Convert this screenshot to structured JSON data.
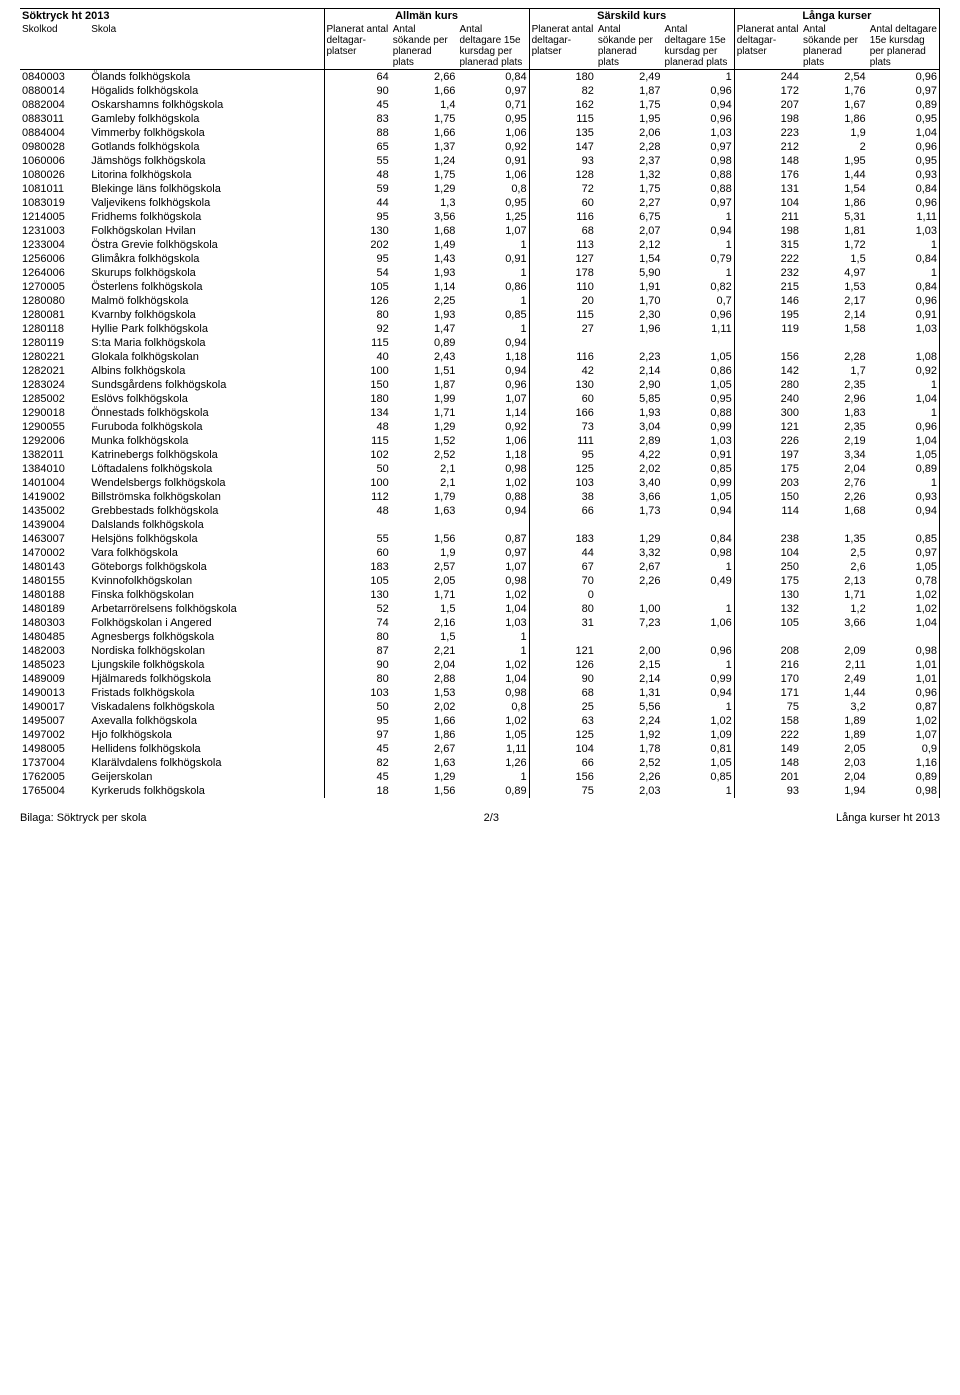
{
  "title": "Söktryck ht 2013",
  "groups": [
    "Allmän kurs",
    "Särskild kurs",
    "Långa kurser"
  ],
  "header": {
    "skolkod": "Skolkod",
    "skola": "Skola",
    "col1": "Planerat antal deltagar-platser",
    "col2": "Antal sökande per planerad plats",
    "col3": "Antal deltagare 15e kursdag per planerad plats"
  },
  "footer": {
    "left": "Bilaga: Söktryck per skola",
    "center": "2/3",
    "right": "Långa kurser ht 2013"
  },
  "rows": [
    [
      "0840003",
      "Ölands folkhögskola",
      "64",
      "2,66",
      "0,84",
      "180",
      "2,49",
      "1",
      "244",
      "2,54",
      "0,96"
    ],
    [
      "0880014",
      "Högalids folkhögskola",
      "90",
      "1,66",
      "0,97",
      "82",
      "1,87",
      "0,96",
      "172",
      "1,76",
      "0,97"
    ],
    [
      "0882004",
      "Oskarshamns folkhögskola",
      "45",
      "1,4",
      "0,71",
      "162",
      "1,75",
      "0,94",
      "207",
      "1,67",
      "0,89"
    ],
    [
      "0883011",
      "Gamleby folkhögskola",
      "83",
      "1,75",
      "0,95",
      "115",
      "1,95",
      "0,96",
      "198",
      "1,86",
      "0,95"
    ],
    [
      "0884004",
      "Vimmerby folkhögskola",
      "88",
      "1,66",
      "1,06",
      "135",
      "2,06",
      "1,03",
      "223",
      "1,9",
      "1,04"
    ],
    [
      "0980028",
      "Gotlands folkhögskola",
      "65",
      "1,37",
      "0,92",
      "147",
      "2,28",
      "0,97",
      "212",
      "2",
      "0,96"
    ],
    [
      "1060006",
      "Jämshögs folkhögskola",
      "55",
      "1,24",
      "0,91",
      "93",
      "2,37",
      "0,98",
      "148",
      "1,95",
      "0,95"
    ],
    [
      "1080026",
      "Litorina folkhögskola",
      "48",
      "1,75",
      "1,06",
      "128",
      "1,32",
      "0,88",
      "176",
      "1,44",
      "0,93"
    ],
    [
      "1081011",
      "Blekinge läns folkhögskola",
      "59",
      "1,29",
      "0,8",
      "72",
      "1,75",
      "0,88",
      "131",
      "1,54",
      "0,84"
    ],
    [
      "1083019",
      "Valjevikens folkhögskola",
      "44",
      "1,3",
      "0,95",
      "60",
      "2,27",
      "0,97",
      "104",
      "1,86",
      "0,96"
    ],
    [
      "1214005",
      "Fridhems folkhögskola",
      "95",
      "3,56",
      "1,25",
      "116",
      "6,75",
      "1",
      "211",
      "5,31",
      "1,11"
    ],
    [
      "1231003",
      "Folkhögskolan Hvilan",
      "130",
      "1,68",
      "1,07",
      "68",
      "2,07",
      "0,94",
      "198",
      "1,81",
      "1,03"
    ],
    [
      "1233004",
      "Östra Grevie folkhögskola",
      "202",
      "1,49",
      "1",
      "113",
      "2,12",
      "1",
      "315",
      "1,72",
      "1"
    ],
    [
      "1256006",
      "Glimåkra folkhögskola",
      "95",
      "1,43",
      "0,91",
      "127",
      "1,54",
      "0,79",
      "222",
      "1,5",
      "0,84"
    ],
    [
      "1264006",
      "Skurups folkhögskola",
      "54",
      "1,93",
      "1",
      "178",
      "5,90",
      "1",
      "232",
      "4,97",
      "1"
    ],
    [
      "1270005",
      "Österlens folkhögskola",
      "105",
      "1,14",
      "0,86",
      "110",
      "1,91",
      "0,82",
      "215",
      "1,53",
      "0,84"
    ],
    [
      "1280080",
      "Malmö folkhögskola",
      "126",
      "2,25",
      "1",
      "20",
      "1,70",
      "0,7",
      "146",
      "2,17",
      "0,96"
    ],
    [
      "1280081",
      "Kvarnby folkhögskola",
      "80",
      "1,93",
      "0,85",
      "115",
      "2,30",
      "0,96",
      "195",
      "2,14",
      "0,91"
    ],
    [
      "1280118",
      "Hyllie Park folkhögskola",
      "92",
      "1,47",
      "1",
      "27",
      "1,96",
      "1,11",
      "119",
      "1,58",
      "1,03"
    ],
    [
      "1280119",
      "S:ta Maria folkhögskola",
      "115",
      "0,89",
      "0,94",
      "",
      "",
      "",
      "",
      "",
      ""
    ],
    [
      "1280221",
      "Glokala folkhögskolan",
      "40",
      "2,43",
      "1,18",
      "116",
      "2,23",
      "1,05",
      "156",
      "2,28",
      "1,08"
    ],
    [
      "1282021",
      "Albins folkhögskola",
      "100",
      "1,51",
      "0,94",
      "42",
      "2,14",
      "0,86",
      "142",
      "1,7",
      "0,92"
    ],
    [
      "1283024",
      "Sundsgårdens folkhögskola",
      "150",
      "1,87",
      "0,96",
      "130",
      "2,90",
      "1,05",
      "280",
      "2,35",
      "1"
    ],
    [
      "1285002",
      "Eslövs folkhögskola",
      "180",
      "1,99",
      "1,07",
      "60",
      "5,85",
      "0,95",
      "240",
      "2,96",
      "1,04"
    ],
    [
      "1290018",
      "Önnestads folkhögskola",
      "134",
      "1,71",
      "1,14",
      "166",
      "1,93",
      "0,88",
      "300",
      "1,83",
      "1"
    ],
    [
      "1290055",
      "Furuboda folkhögskola",
      "48",
      "1,29",
      "0,92",
      "73",
      "3,04",
      "0,99",
      "121",
      "2,35",
      "0,96"
    ],
    [
      "1292006",
      "Munka folkhögskola",
      "115",
      "1,52",
      "1,06",
      "111",
      "2,89",
      "1,03",
      "226",
      "2,19",
      "1,04"
    ],
    [
      "1382011",
      "Katrinebergs folkhögskola",
      "102",
      "2,52",
      "1,18",
      "95",
      "4,22",
      "0,91",
      "197",
      "3,34",
      "1,05"
    ],
    [
      "1384010",
      "Löftadalens folkhögskola",
      "50",
      "2,1",
      "0,98",
      "125",
      "2,02",
      "0,85",
      "175",
      "2,04",
      "0,89"
    ],
    [
      "1401004",
      "Wendelsbergs folkhögskola",
      "100",
      "2,1",
      "1,02",
      "103",
      "3,40",
      "0,99",
      "203",
      "2,76",
      "1"
    ],
    [
      "1419002",
      "Billströmska folkhögskolan",
      "112",
      "1,79",
      "0,88",
      "38",
      "3,66",
      "1,05",
      "150",
      "2,26",
      "0,93"
    ],
    [
      "1435002",
      "Grebbestads folkhögskola",
      "48",
      "1,63",
      "0,94",
      "66",
      "1,73",
      "0,94",
      "114",
      "1,68",
      "0,94"
    ],
    [
      "1439004",
      "Dalslands folkhögskola",
      "",
      "",
      "",
      "",
      "",
      "",
      "",
      "",
      ""
    ],
    [
      "1463007",
      "Helsjöns folkhögskola",
      "55",
      "1,56",
      "0,87",
      "183",
      "1,29",
      "0,84",
      "238",
      "1,35",
      "0,85"
    ],
    [
      "1470002",
      "Vara folkhögskola",
      "60",
      "1,9",
      "0,97",
      "44",
      "3,32",
      "0,98",
      "104",
      "2,5",
      "0,97"
    ],
    [
      "1480143",
      "Göteborgs folkhögskola",
      "183",
      "2,57",
      "1,07",
      "67",
      "2,67",
      "1",
      "250",
      "2,6",
      "1,05"
    ],
    [
      "1480155",
      "Kvinnofolkhögskolan",
      "105",
      "2,05",
      "0,98",
      "70",
      "2,26",
      "0,49",
      "175",
      "2,13",
      "0,78"
    ],
    [
      "1480188",
      "Finska folkhögskolan",
      "130",
      "1,71",
      "1,02",
      "0",
      "",
      "",
      "130",
      "1,71",
      "1,02"
    ],
    [
      "1480189",
      "Arbetarrörelsens folkhögskola",
      "52",
      "1,5",
      "1,04",
      "80",
      "1,00",
      "1",
      "132",
      "1,2",
      "1,02"
    ],
    [
      "1480303",
      "Folkhögskolan i Angered",
      "74",
      "2,16",
      "1,03",
      "31",
      "7,23",
      "1,06",
      "105",
      "3,66",
      "1,04"
    ],
    [
      "1480485",
      "Agnesbergs folkhögskola",
      "80",
      "1,5",
      "1",
      "",
      "",
      "",
      "",
      "",
      ""
    ],
    [
      "1482003",
      "Nordiska folkhögskolan",
      "87",
      "2,21",
      "1",
      "121",
      "2,00",
      "0,96",
      "208",
      "2,09",
      "0,98"
    ],
    [
      "1485023",
      "Ljungskile folkhögskola",
      "90",
      "2,04",
      "1,02",
      "126",
      "2,15",
      "1",
      "216",
      "2,11",
      "1,01"
    ],
    [
      "1489009",
      "Hjälmareds folkhögskola",
      "80",
      "2,88",
      "1,04",
      "90",
      "2,14",
      "0,99",
      "170",
      "2,49",
      "1,01"
    ],
    [
      "1490013",
      "Fristads folkhögskola",
      "103",
      "1,53",
      "0,98",
      "68",
      "1,31",
      "0,94",
      "171",
      "1,44",
      "0,96"
    ],
    [
      "1490017",
      "Viskadalens folkhögskola",
      "50",
      "2,02",
      "0,8",
      "25",
      "5,56",
      "1",
      "75",
      "3,2",
      "0,87"
    ],
    [
      "1495007",
      "Axevalla folkhögskola",
      "95",
      "1,66",
      "1,02",
      "63",
      "2,24",
      "1,02",
      "158",
      "1,89",
      "1,02"
    ],
    [
      "1497002",
      "Hjo folkhögskola",
      "97",
      "1,86",
      "1,05",
      "125",
      "1,92",
      "1,09",
      "222",
      "1,89",
      "1,07"
    ],
    [
      "1498005",
      "Hellidens folkhögskola",
      "45",
      "2,67",
      "1,11",
      "104",
      "1,78",
      "0,81",
      "149",
      "2,05",
      "0,9"
    ],
    [
      "1737004",
      "Klarälvdalens folkhögskola",
      "82",
      "1,63",
      "1,26",
      "66",
      "2,52",
      "1,05",
      "148",
      "2,03",
      "1,16"
    ],
    [
      "1762005",
      "Geijerskolan",
      "45",
      "1,29",
      "1",
      "156",
      "2,26",
      "0,85",
      "201",
      "2,04",
      "0,89"
    ],
    [
      "1765004",
      "Kyrkeruds folkhögskola",
      "18",
      "1,56",
      "0,89",
      "75",
      "2,03",
      "1",
      "93",
      "1,94",
      "0,98"
    ]
  ]
}
